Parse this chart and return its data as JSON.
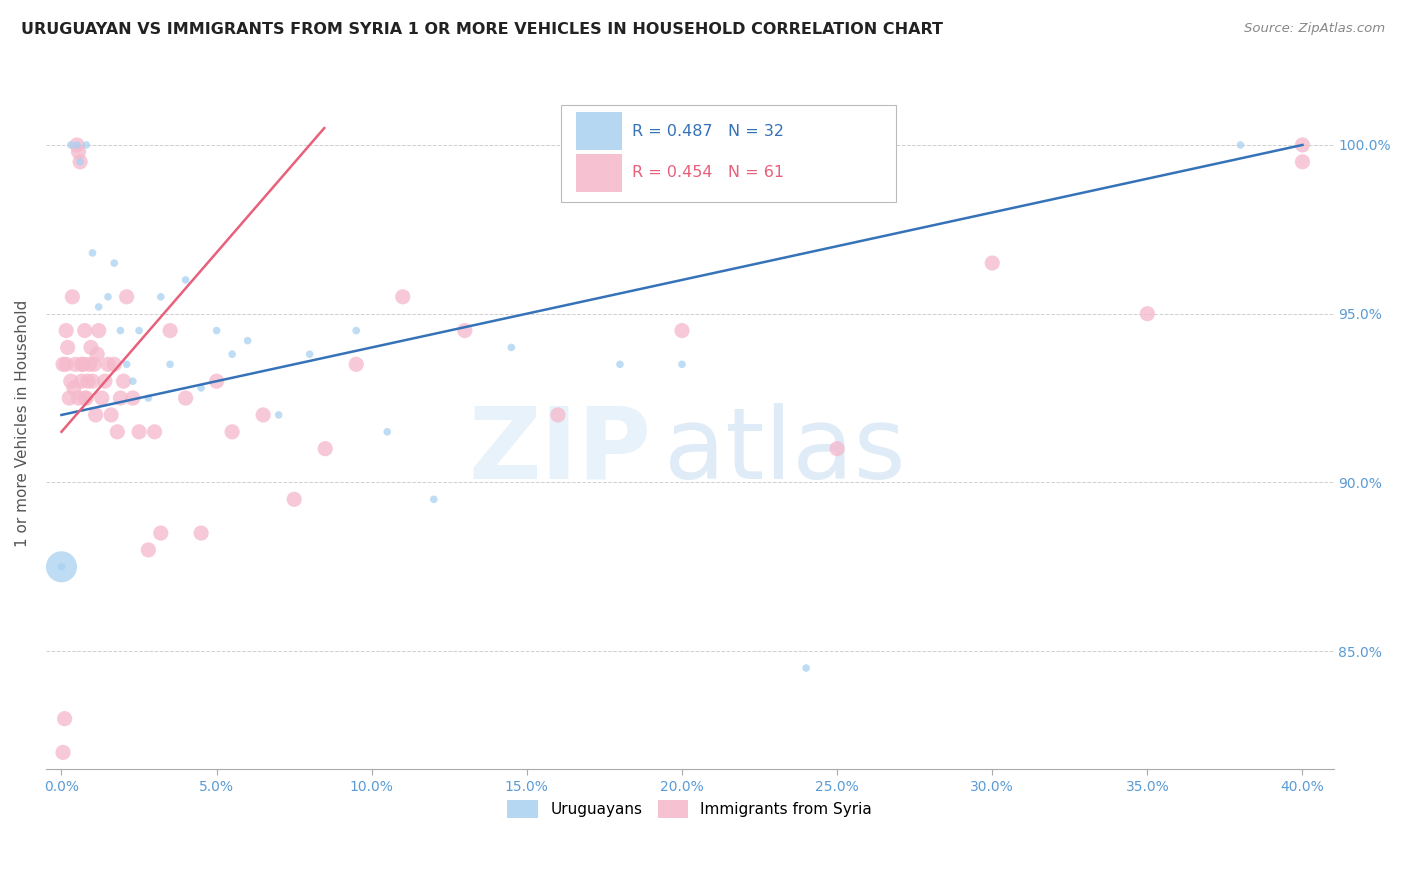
{
  "title": "URUGUAYAN VS IMMIGRANTS FROM SYRIA 1 OR MORE VEHICLES IN HOUSEHOLD CORRELATION CHART",
  "source": "Source: ZipAtlas.com",
  "ylabel": "1 or more Vehicles in Household",
  "xlim": [
    -0.5,
    41.0
  ],
  "ylim": [
    81.5,
    102.0
  ],
  "yticks": [
    85.0,
    90.0,
    95.0,
    100.0
  ],
  "xticks": [
    0.0,
    5.0,
    10.0,
    15.0,
    20.0,
    25.0,
    30.0,
    35.0,
    40.0
  ],
  "uruguayans_x": [
    0.0,
    0.3,
    0.5,
    0.6,
    0.8,
    1.0,
    1.2,
    1.5,
    1.7,
    1.9,
    2.1,
    2.3,
    2.5,
    2.8,
    3.2,
    3.5,
    4.0,
    4.5,
    5.0,
    5.5,
    6.0,
    7.0,
    8.0,
    9.5,
    10.5,
    12.0,
    14.5,
    18.0,
    20.0,
    24.0,
    38.0,
    0.0
  ],
  "uruguayans_y": [
    87.5,
    100.0,
    100.0,
    99.5,
    100.0,
    96.8,
    95.2,
    95.5,
    96.5,
    94.5,
    93.5,
    93.0,
    94.5,
    92.5,
    95.5,
    93.5,
    96.0,
    92.8,
    94.5,
    93.8,
    94.2,
    92.0,
    93.8,
    94.5,
    91.5,
    89.5,
    94.0,
    93.5,
    93.5,
    84.5,
    100.0,
    87.5
  ],
  "uruguayans_size": [
    30,
    30,
    30,
    30,
    30,
    30,
    30,
    30,
    30,
    30,
    30,
    30,
    30,
    30,
    30,
    30,
    30,
    30,
    30,
    30,
    30,
    30,
    30,
    30,
    30,
    30,
    30,
    30,
    30,
    30,
    30,
    500
  ],
  "syria_x": [
    0.05,
    0.1,
    0.15,
    0.2,
    0.3,
    0.35,
    0.4,
    0.5,
    0.55,
    0.6,
    0.65,
    0.7,
    0.75,
    0.8,
    0.85,
    0.9,
    0.95,
    1.0,
    1.05,
    1.1,
    1.15,
    1.2,
    1.3,
    1.4,
    1.5,
    1.6,
    1.7,
    1.8,
    1.9,
    2.0,
    2.1,
    2.3,
    2.5,
    2.8,
    3.0,
    3.2,
    3.5,
    4.0,
    4.5,
    5.0,
    5.5,
    6.5,
    7.5,
    8.5,
    9.5,
    11.0,
    13.0,
    16.0,
    20.0,
    25.0,
    30.0,
    35.0,
    40.0,
    40.0,
    0.05,
    0.15,
    0.25,
    0.45,
    0.55,
    0.65,
    0.75
  ],
  "syria_y": [
    82.0,
    83.0,
    93.5,
    94.0,
    93.0,
    95.5,
    92.8,
    100.0,
    99.8,
    99.5,
    93.0,
    93.5,
    94.5,
    92.5,
    93.0,
    93.5,
    94.0,
    93.0,
    93.5,
    92.0,
    93.8,
    94.5,
    92.5,
    93.0,
    93.5,
    92.0,
    93.5,
    91.5,
    92.5,
    93.0,
    95.5,
    92.5,
    91.5,
    88.0,
    91.5,
    88.5,
    94.5,
    92.5,
    88.5,
    93.0,
    91.5,
    92.0,
    89.5,
    91.0,
    93.5,
    95.5,
    94.5,
    92.0,
    94.5,
    91.0,
    96.5,
    95.0,
    100.0,
    99.5,
    93.5,
    94.5,
    92.5,
    93.5,
    92.5,
    93.5,
    92.5
  ],
  "blue_reg_x0": 0.0,
  "blue_reg_y0": 92.0,
  "blue_reg_x1": 40.0,
  "blue_reg_y1": 100.0,
  "pink_reg_x0": 0.0,
  "pink_reg_y0": 91.5,
  "pink_reg_x1": 8.0,
  "pink_reg_y1": 100.0,
  "R_uruguayan": 0.487,
  "N_uruguayan": 32,
  "R_syria": 0.454,
  "N_syria": 61,
  "blue_color": "#a8d1f0",
  "pink_color": "#f5b8cb",
  "blue_line_color": "#3572b8",
  "pink_line_color": "#e8607a",
  "legend_label_uruguayan": "Uruguayans",
  "legend_label_syria": "Immigrants from Syria",
  "watermark_zip": "ZIP",
  "watermark_atlas": "atlas",
  "background_color": "#ffffff",
  "grid_color": "#d0d0d0",
  "tick_color": "#5b9bd5",
  "title_fontsize": 11.5,
  "source_fontsize": 9.5
}
